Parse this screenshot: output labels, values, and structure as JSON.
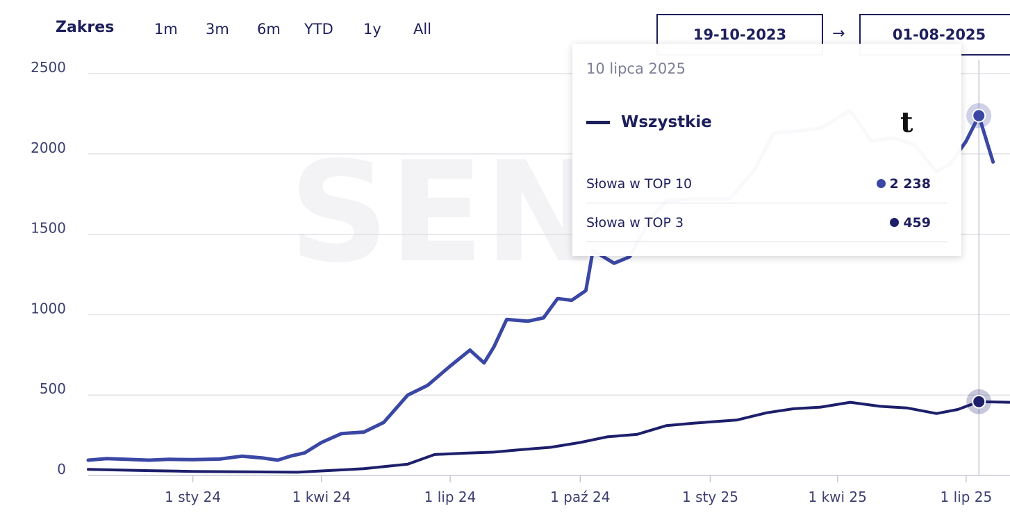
{
  "range": {
    "label": "Zakres",
    "buttons": [
      "1m",
      "3m",
      "6m",
      "YTD",
      "1y",
      "All"
    ],
    "date_from": "19-10-2023",
    "arrow": "→",
    "date_to": "01-08-2025"
  },
  "watermark": "SEN",
  "tooltip": {
    "date": "10 lipca 2025",
    "series_name": "Wszystkie",
    "glyph": "t",
    "rows": [
      {
        "label": "Słowa w TOP 10",
        "value": "2 238",
        "color": "#3a47a4"
      },
      {
        "label": "Słowa w TOP 3",
        "value": "459",
        "color": "#1d1f6b"
      }
    ]
  },
  "chart_data": {
    "type": "line",
    "title": "",
    "xlabel": "",
    "ylabel": "",
    "ylim": [
      0,
      2500
    ],
    "yticks": [
      0,
      500,
      1000,
      1500,
      2000,
      2500
    ],
    "xlim": [
      "2023-10-19",
      "2025-08-01"
    ],
    "xticks": [
      {
        "date": "2024-01-01",
        "label": "1 sty 24"
      },
      {
        "date": "2024-04-01",
        "label": "1 kwi 24"
      },
      {
        "date": "2024-07-01",
        "label": "1 lip 24"
      },
      {
        "date": "2024-10-01",
        "label": "1 paź 24"
      },
      {
        "date": "2025-01-01",
        "label": "1 sty 25"
      },
      {
        "date": "2025-04-01",
        "label": "1 kwi 25"
      },
      {
        "date": "2025-07-01",
        "label": "1 lip 25"
      }
    ],
    "grid": true,
    "hover_date": "2025-07-10",
    "series": [
      {
        "name": "Słowa w TOP 10",
        "color": "#3a47a4",
        "points": [
          [
            "2023-10-19",
            95
          ],
          [
            "2023-11-01",
            105
          ],
          [
            "2023-11-15",
            100
          ],
          [
            "2023-12-01",
            95
          ],
          [
            "2023-12-15",
            100
          ],
          [
            "2024-01-01",
            98
          ],
          [
            "2024-01-20",
            102
          ],
          [
            "2024-02-05",
            120
          ],
          [
            "2024-02-20",
            108
          ],
          [
            "2024-03-01",
            95
          ],
          [
            "2024-03-10",
            120
          ],
          [
            "2024-03-20",
            140
          ],
          [
            "2024-04-01",
            205
          ],
          [
            "2024-04-15",
            260
          ],
          [
            "2024-05-01",
            270
          ],
          [
            "2024-05-15",
            330
          ],
          [
            "2024-06-01",
            500
          ],
          [
            "2024-06-15",
            560
          ],
          [
            "2024-07-01",
            680
          ],
          [
            "2024-07-15",
            780
          ],
          [
            "2024-07-25",
            700
          ],
          [
            "2024-08-01",
            800
          ],
          [
            "2024-08-10",
            970
          ],
          [
            "2024-08-25",
            960
          ],
          [
            "2024-09-05",
            980
          ],
          [
            "2024-09-15",
            1100
          ],
          [
            "2024-09-25",
            1090
          ],
          [
            "2024-10-05",
            1150
          ],
          [
            "2024-10-10",
            1400
          ],
          [
            "2024-10-25",
            1320
          ],
          [
            "2024-11-05",
            1360
          ],
          [
            "2024-11-20",
            1600
          ],
          [
            "2024-12-01",
            1710
          ],
          [
            "2024-12-20",
            1720
          ],
          [
            "2025-01-15",
            1720
          ],
          [
            "2025-02-01",
            1900
          ],
          [
            "2025-02-15",
            2130
          ],
          [
            "2025-03-01",
            2140
          ],
          [
            "2025-03-20",
            2160
          ],
          [
            "2025-04-10",
            2270
          ],
          [
            "2025-04-25",
            2080
          ],
          [
            "2025-05-10",
            2100
          ],
          [
            "2025-05-25",
            2060
          ],
          [
            "2025-06-10",
            1890
          ],
          [
            "2025-06-20",
            1940
          ],
          [
            "2025-07-01",
            2080
          ],
          [
            "2025-07-10",
            2238
          ],
          [
            "2025-07-20",
            1950
          ]
        ]
      },
      {
        "name": "Słowa w TOP 3",
        "color": "#1d1f6b",
        "points": [
          [
            "2023-10-19",
            38
          ],
          [
            "2023-12-01",
            30
          ],
          [
            "2024-01-01",
            25
          ],
          [
            "2024-02-15",
            22
          ],
          [
            "2024-03-15",
            20
          ],
          [
            "2024-04-01",
            28
          ],
          [
            "2024-05-01",
            42
          ],
          [
            "2024-06-01",
            70
          ],
          [
            "2024-06-20",
            130
          ],
          [
            "2024-07-10",
            138
          ],
          [
            "2024-08-01",
            145
          ],
          [
            "2024-08-20",
            160
          ],
          [
            "2024-09-10",
            175
          ],
          [
            "2024-10-01",
            205
          ],
          [
            "2024-10-20",
            240
          ],
          [
            "2024-11-10",
            255
          ],
          [
            "2024-12-01",
            310
          ],
          [
            "2024-12-20",
            325
          ],
          [
            "2025-01-20",
            345
          ],
          [
            "2025-02-10",
            390
          ],
          [
            "2025-03-01",
            415
          ],
          [
            "2025-03-20",
            425
          ],
          [
            "2025-04-10",
            455
          ],
          [
            "2025-05-01",
            430
          ],
          [
            "2025-05-20",
            420
          ],
          [
            "2025-06-10",
            385
          ],
          [
            "2025-06-25",
            410
          ],
          [
            "2025-07-10",
            459
          ],
          [
            "2025-08-01",
            455
          ]
        ]
      }
    ]
  }
}
